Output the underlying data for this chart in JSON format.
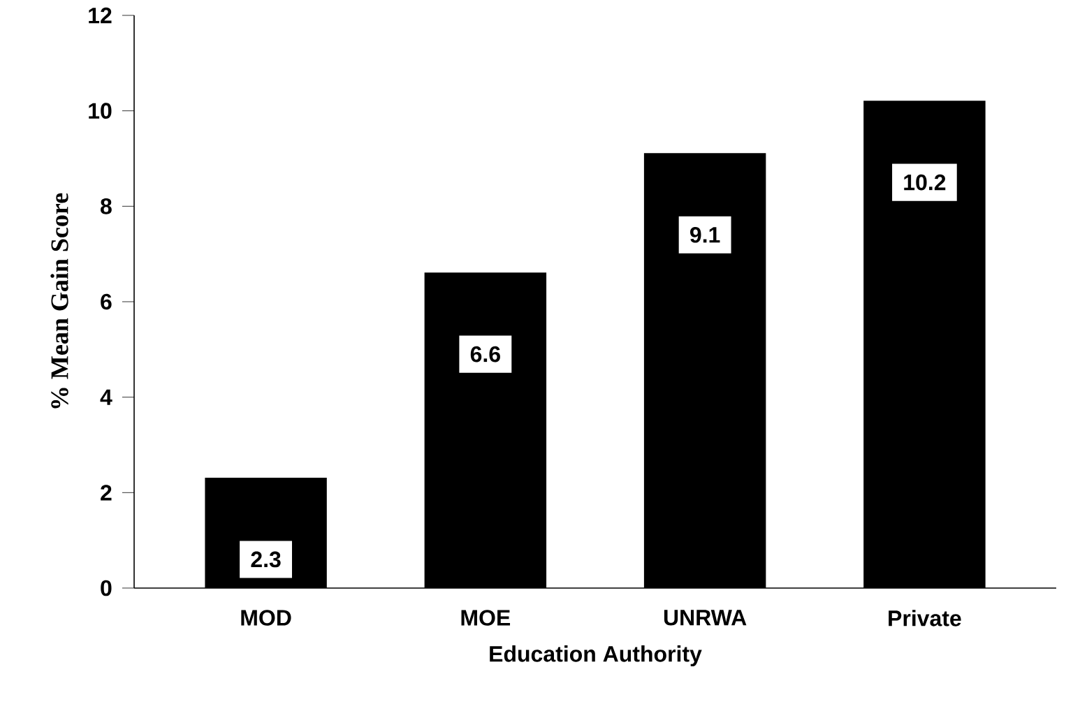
{
  "chart_data": {
    "type": "bar",
    "xlabel": "Education Authority",
    "ylabel": "% Mean Gain Score",
    "categories": [
      "MOD",
      "MOE",
      "UNRWA",
      "Private"
    ],
    "values": [
      2.3,
      6.6,
      9.1,
      10.2
    ],
    "color": "#000000",
    "ylim": [
      0,
      12
    ],
    "yticks": [
      0,
      2,
      4,
      6,
      8,
      10,
      12
    ],
    "data_labels": true
  }
}
